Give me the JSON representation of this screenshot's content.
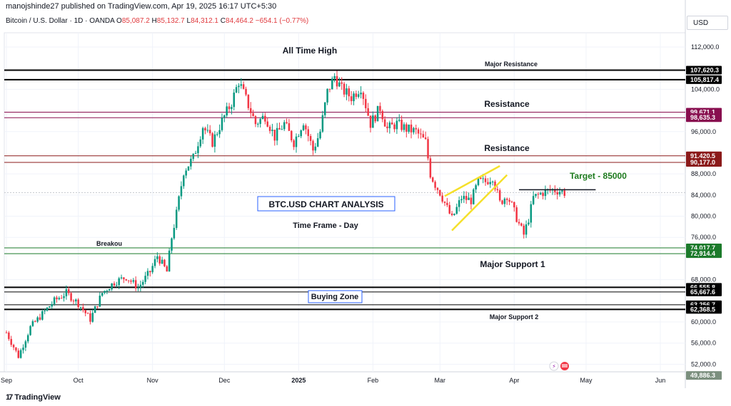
{
  "publisher": "manojshinde27 published on TradingView.com, Apr 19, 2025 16:17 UTC+5:30",
  "legend": {
    "symbol": "Bitcoin / U.S. Dollar · 1D · OANDA",
    "open_label": "O",
    "open": "85,087.2",
    "high_label": "H",
    "high": "85,132.7",
    "low_label": "L",
    "low": "84,312.1",
    "close_label": "C",
    "close": "84,464.2",
    "change": "−654.1 (−0.77%)"
  },
  "currency": "USD",
  "footer_logo": "TradingView",
  "chart_data": {
    "type": "candlestick",
    "y_range": [
      48000,
      116000
    ],
    "y_ticks": [
      {
        "value": 112000,
        "label": "112,000.0"
      },
      {
        "value": 104000,
        "label": "104,000.0"
      },
      {
        "value": 96000,
        "label": "96,000.0"
      },
      {
        "value": 88000,
        "label": "88,000.0"
      },
      {
        "value": 84000,
        "label": "84,000.0"
      },
      {
        "value": 80000,
        "label": "80,000.0"
      },
      {
        "value": 76000,
        "label": "76,000.0"
      },
      {
        "value": 68000,
        "label": "68,000.0"
      },
      {
        "value": 60000,
        "label": "60,000.0"
      },
      {
        "value": 56000,
        "label": "56,000.0"
      },
      {
        "value": 52000,
        "label": "52,000.0"
      }
    ],
    "x_ticks": [
      {
        "day": 0,
        "label": "Sep",
        "bold": false
      },
      {
        "day": 30,
        "label": "Oct",
        "bold": false
      },
      {
        "day": 61,
        "label": "Nov",
        "bold": false
      },
      {
        "day": 91,
        "label": "Dec",
        "bold": false
      },
      {
        "day": 122,
        "label": "2025",
        "bold": true
      },
      {
        "day": 153,
        "label": "Feb",
        "bold": false
      },
      {
        "day": 181,
        "label": "Mar",
        "bold": false
      },
      {
        "day": 212,
        "label": "Apr",
        "bold": false
      },
      {
        "day": 242,
        "label": "May",
        "bold": false
      },
      {
        "day": 273,
        "label": "Jun",
        "bold": false
      }
    ],
    "x_range_days": [
      0,
      279
    ],
    "levels": [
      {
        "value": 107620.3,
        "label": "107,620.3",
        "color": "#000000",
        "width": 2
      },
      {
        "value": 105817.4,
        "label": "105,817.4",
        "color": "#000000",
        "width": 2
      },
      {
        "value": 99671.1,
        "label": "99,671.1",
        "color": "#880e4f",
        "width": 1
      },
      {
        "value": 98635.3,
        "label": "98,635.3",
        "color": "#880e4f",
        "width": 1
      },
      {
        "value": 91420.5,
        "label": "91,420.5",
        "color": "#8b1a1a",
        "width": 1
      },
      {
        "value": 90177.0,
        "label": "90,177.0",
        "color": "#8b1a1a",
        "width": 1
      },
      {
        "value": 74017.7,
        "label": "74,017.7",
        "color": "#1b7a2a",
        "width": 1
      },
      {
        "value": 72914.4,
        "label": "72,914.4",
        "color": "#1b7a2a",
        "width": 1
      },
      {
        "value": 66555.8,
        "label": "66,555.8",
        "color": "#000000",
        "width": 2
      },
      {
        "value": 65667.6,
        "label": "65,667.6",
        "color": "#000000",
        "width": 1
      },
      {
        "value": 63256.7,
        "label": "63,256.7",
        "color": "#000000",
        "width": 1
      },
      {
        "value": 62368.5,
        "label": "62,368.5",
        "color": "#000000",
        "width": 2
      }
    ],
    "current_price": {
      "value": 84464.2,
      "label": "84,464.2"
    },
    "extra_tag": {
      "value": 49886.3,
      "label": "49,886.3"
    },
    "annotations": {
      "all_time_high": "All Time High",
      "major_resistance": "Major Resistance",
      "resistance_1": "Resistance",
      "resistance_2": "Resistance",
      "target": "Target - 85000",
      "title_box": "BTC.USD CHART ANALYSIS",
      "time_frame": "Time Frame - Day",
      "breakout": "Breakou",
      "major_support_1": "Major Support 1",
      "buying_zone": "Buying Zone",
      "major_support_2": "Major Support 2"
    },
    "target_line": {
      "value": 85000,
      "from_day": 214,
      "to_day": 246
    },
    "wedge": {
      "upper": [
        [
          183,
          83800
        ],
        [
          206,
          89500
        ]
      ],
      "lower": [
        [
          186,
          77300
        ],
        [
          209,
          87800
        ]
      ]
    },
    "candle_keypoints": [
      [
        0,
        58000
      ],
      [
        5,
        53500
      ],
      [
        10,
        59000
      ],
      [
        15,
        61500
      ],
      [
        20,
        64000
      ],
      [
        25,
        65500
      ],
      [
        30,
        63500
      ],
      [
        35,
        60500
      ],
      [
        40,
        65500
      ],
      [
        45,
        67500
      ],
      [
        50,
        68500
      ],
      [
        55,
        66500
      ],
      [
        60,
        69500
      ],
      [
        63,
        72500
      ],
      [
        67,
        69500
      ],
      [
        69,
        76000
      ],
      [
        71,
        80500
      ],
      [
        74,
        88500
      ],
      [
        78,
        91000
      ],
      [
        82,
        97000
      ],
      [
        86,
        94000
      ],
      [
        90,
        98000
      ],
      [
        94,
        101500
      ],
      [
        97,
        105500
      ],
      [
        101,
        101000
      ],
      [
        104,
        97500
      ],
      [
        108,
        99000
      ],
      [
        112,
        95000
      ],
      [
        116,
        97500
      ],
      [
        120,
        94000
      ],
      [
        124,
        98000
      ],
      [
        128,
        92500
      ],
      [
        131,
        96000
      ],
      [
        134,
        103500
      ],
      [
        137,
        106500
      ],
      [
        140,
        104000
      ],
      [
        144,
        102500
      ],
      [
        148,
        104500
      ],
      [
        152,
        97500
      ],
      [
        156,
        100500
      ],
      [
        159,
        96500
      ],
      [
        163,
        97500
      ],
      [
        167,
        96500
      ],
      [
        171,
        96000
      ],
      [
        175,
        94000
      ],
      [
        177,
        88000
      ],
      [
        179,
        86000
      ],
      [
        181,
        84500
      ],
      [
        183,
        82500
      ],
      [
        186,
        79500
      ],
      [
        190,
        83500
      ],
      [
        194,
        83000
      ],
      [
        197,
        86500
      ],
      [
        200,
        86500
      ],
      [
        203,
        87500
      ],
      [
        206,
        82500
      ],
      [
        209,
        84000
      ],
      [
        211,
        82000
      ],
      [
        214,
        78500
      ],
      [
        216,
        76500
      ],
      [
        218,
        79500
      ],
      [
        220,
        83500
      ],
      [
        224,
        84500
      ],
      [
        228,
        85000
      ],
      [
        231,
        84800
      ],
      [
        233,
        84464
      ]
    ]
  }
}
